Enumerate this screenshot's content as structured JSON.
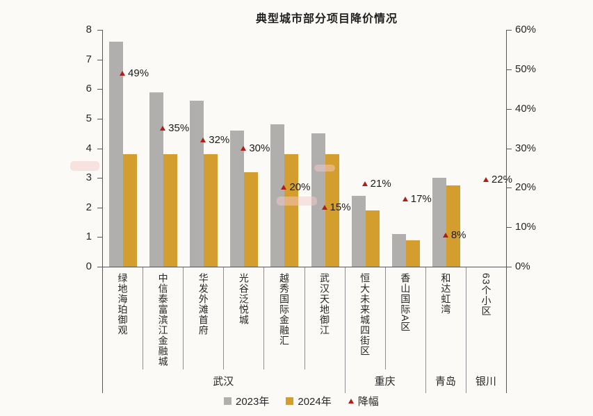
{
  "chart_data": {
    "type": "bar",
    "title": "典型城市部分项目降价情况",
    "categories": [
      "绿地海珀御观",
      "中信泰富滨江金融城",
      "华发外滩首府",
      "光谷泛悦城",
      "越秀国际金融汇",
      "武汉天地御江",
      "恒大未来城四街区",
      "香山国际A区",
      "和达虹湾",
      "63个小区"
    ],
    "series": [
      {
        "name": "2023年",
        "color": "#b0afae",
        "values": [
          7.6,
          5.9,
          5.6,
          4.6,
          4.8,
          4.5,
          2.4,
          1.1,
          3.0,
          null
        ]
      },
      {
        "name": "2024年",
        "color": "#d39e2e",
        "values": [
          3.8,
          3.8,
          3.8,
          3.2,
          3.8,
          3.8,
          1.9,
          0.9,
          2.75,
          null
        ]
      }
    ],
    "drop_markers": {
      "name": "降幅",
      "color": "#b01e15",
      "shape": "triangle-up",
      "values_pct": [
        49,
        35,
        32,
        30,
        20,
        15,
        21,
        17,
        8,
        22
      ],
      "labels": [
        "49%",
        "35%",
        "32%",
        "30%",
        "20%",
        "15%",
        "21%",
        "17%",
        "8%",
        "22%"
      ]
    },
    "groups": [
      {
        "label": "武汉",
        "span": 6
      },
      {
        "label": "重庆",
        "span": 2
      },
      {
        "label": "青岛",
        "span": 1
      },
      {
        "label": "银川",
        "span": 1
      }
    ],
    "axis_left": {
      "min": 0,
      "max": 8,
      "ticks": [
        "0",
        "1",
        "2",
        "3",
        "4",
        "5",
        "6",
        "7",
        "8"
      ]
    },
    "axis_right": {
      "min": 0,
      "max": 60,
      "ticks": [
        "0%",
        "10%",
        "20%",
        "30%",
        "40%",
        "50%",
        "60%"
      ]
    },
    "grid": false,
    "legend_position": "bottom"
  }
}
